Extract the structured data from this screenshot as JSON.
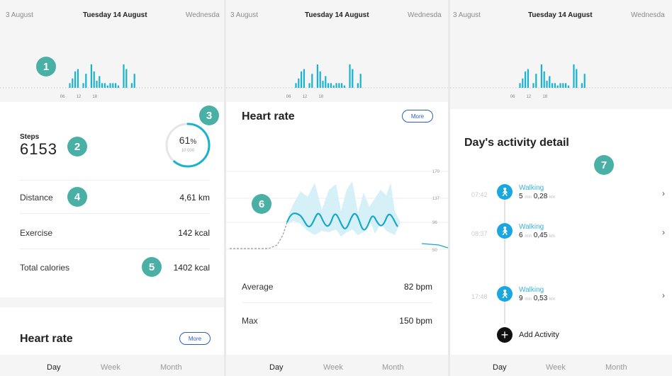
{
  "dates": {
    "prev": "3 August",
    "current": "Tuesday 14 August",
    "next": "Wednesda"
  },
  "activity_graph": {
    "ticks": [
      "06",
      "12",
      "18"
    ],
    "bars": [
      [
        13,
        2
      ],
      [
        14,
        4
      ],
      [
        15,
        7
      ],
      [
        16,
        8
      ],
      [
        18,
        2
      ],
      [
        19,
        6
      ],
      [
        21,
        10
      ],
      [
        22,
        7
      ],
      [
        23,
        3
      ],
      [
        24,
        5
      ],
      [
        25,
        2
      ],
      [
        26,
        2
      ],
      [
        27,
        1
      ],
      [
        28,
        2
      ],
      [
        29,
        2
      ],
      [
        30,
        2
      ],
      [
        31,
        1
      ],
      [
        33,
        10
      ],
      [
        34,
        8
      ],
      [
        36,
        2
      ],
      [
        37,
        6
      ]
    ]
  },
  "badges": [
    "1",
    "2",
    "3",
    "4",
    "5",
    "6",
    "7"
  ],
  "steps": {
    "label": "Steps",
    "value": "6153",
    "percent": "61",
    "percent_unit": "%",
    "goal": "10 000",
    "progress": 0.61
  },
  "rows": [
    {
      "label": "Distance",
      "value": "4,61 km"
    },
    {
      "label": "Exercise",
      "value": "142 kcal"
    },
    {
      "label": "Total calories",
      "value": "1402 kcal"
    }
  ],
  "heart": {
    "title": "Heart rate",
    "more": "More",
    "ticks": [
      "170",
      "137",
      "96",
      "50"
    ],
    "rows": [
      {
        "label": "Average",
        "value": "82 bpm"
      },
      {
        "label": "Max",
        "value": "150 bpm"
      }
    ]
  },
  "tabs": [
    "Day",
    "Week",
    "Month"
  ],
  "activity": {
    "title": "Day's activity detail",
    "items": [
      {
        "time": "07:42",
        "label": "Walking",
        "value1": "5",
        "unit1": "min",
        "value2": "0,28",
        "unit2": "km"
      },
      {
        "time": "08:37",
        "label": "Walking",
        "value1": "6",
        "unit1": "min",
        "value2": "0,45",
        "unit2": "km"
      },
      {
        "time": "17:48",
        "label": "Walking",
        "value1": "9",
        "unit1": "min",
        "value2": "0,53",
        "unit2": "km"
      }
    ],
    "add": "Add Activity"
  },
  "colors": {
    "accent": "#19b3d0",
    "badge": "#4ab0a5",
    "heart": "#17a8c8",
    "button": "#2a5fc1"
  }
}
